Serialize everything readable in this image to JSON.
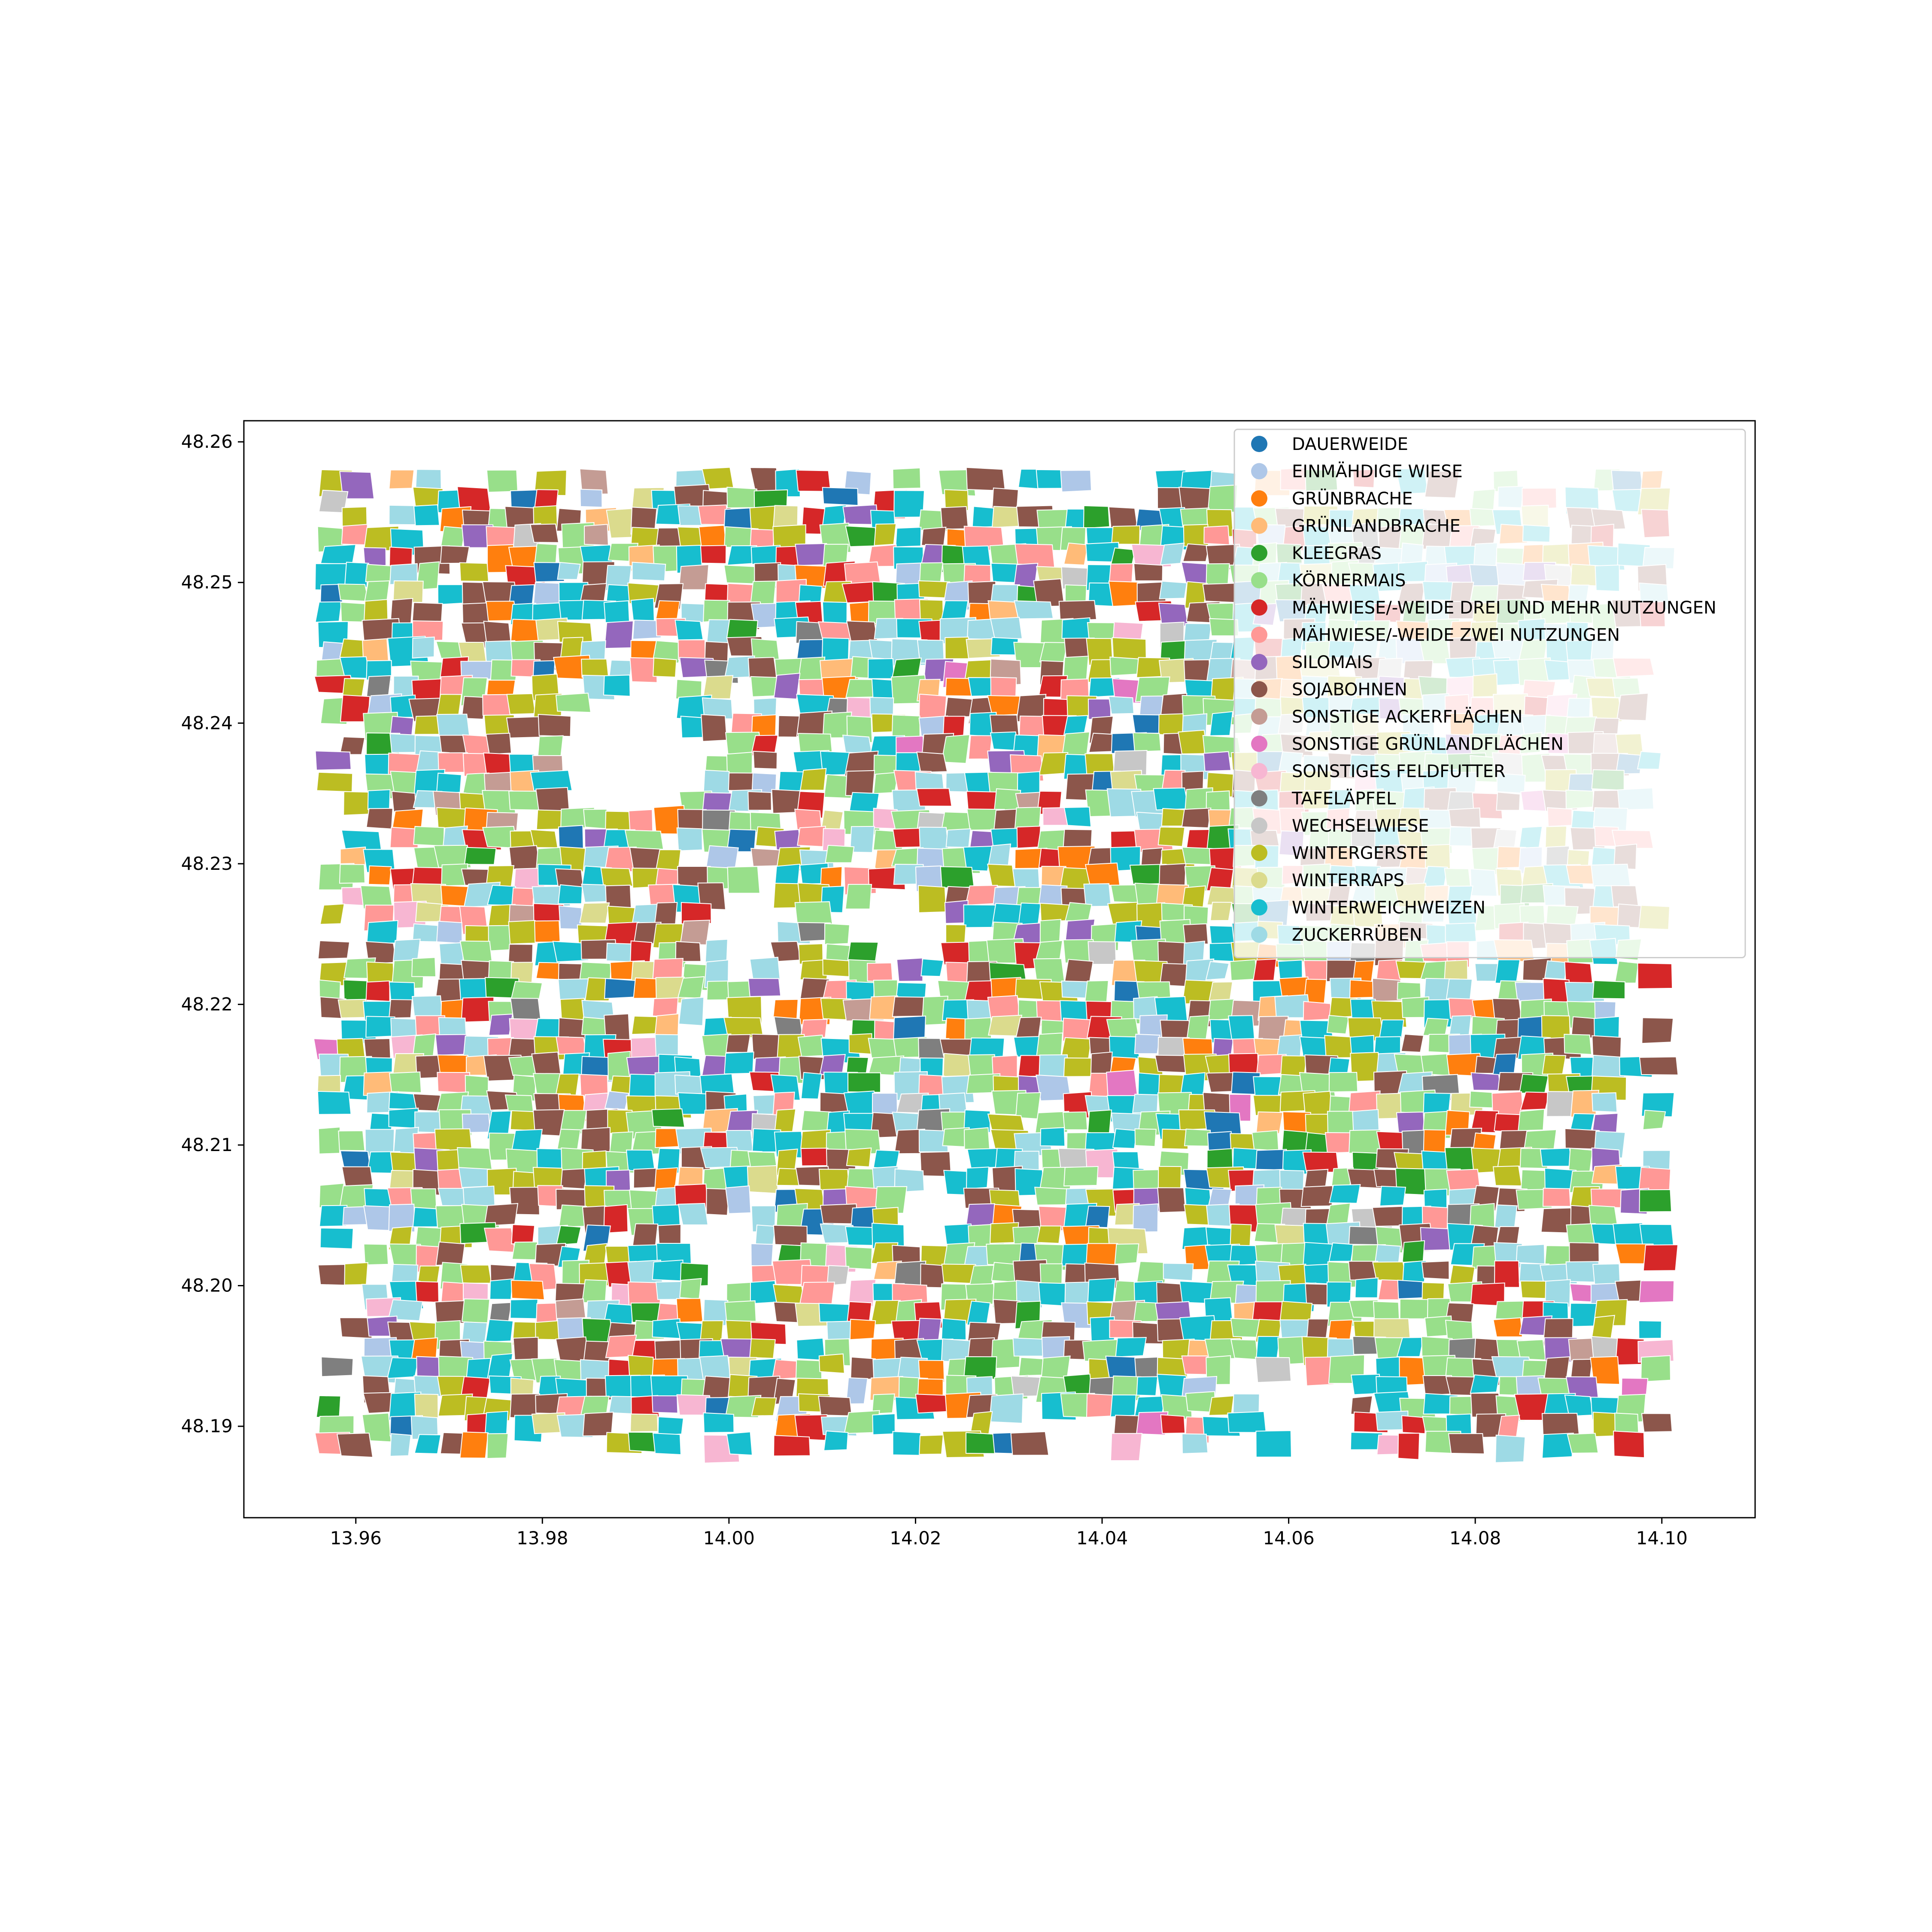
{
  "chart_data": {
    "type": "map",
    "title": "",
    "xlabel": "",
    "ylabel": "",
    "xlim": [
      13.948,
      14.11
    ],
    "ylim": [
      48.1835,
      48.2615
    ],
    "x_ticks": [
      "13.96",
      "13.98",
      "14.00",
      "14.02",
      "14.04",
      "14.06",
      "14.08",
      "14.10"
    ],
    "y_ticks": [
      "48.19",
      "48.20",
      "48.21",
      "48.22",
      "48.23",
      "48.24",
      "48.25",
      "48.26"
    ],
    "data_extent": {
      "lon": [
        13.956,
        14.102
      ],
      "lat": [
        48.187,
        48.258
      ]
    },
    "legend_position": "upper-right",
    "categories": [
      {
        "name": "DAUERWEIDE",
        "color": "#1f77b4"
      },
      {
        "name": "EINMÄHDIGE WIESE",
        "color": "#aec7e8"
      },
      {
        "name": "GRÜNBRACHE",
        "color": "#ff7f0e"
      },
      {
        "name": "GRÜNLANDBRACHE",
        "color": "#ffbb78"
      },
      {
        "name": "KLEEGRAS",
        "color": "#2ca02c"
      },
      {
        "name": "KÖRNERMAIS",
        "color": "#98df8a"
      },
      {
        "name": "MÄHWIESE/-WEIDE DREI UND MEHR NUTZUNGEN",
        "color": "#d62728"
      },
      {
        "name": "MÄHWIESE/-WEIDE ZWEI NUTZUNGEN",
        "color": "#ff9896"
      },
      {
        "name": "SILOMAIS",
        "color": "#9467bd"
      },
      {
        "name": "SOJABOHNEN",
        "color": "#8c564b"
      },
      {
        "name": "SONSTIGE ACKERFLÄCHEN",
        "color": "#c49c94"
      },
      {
        "name": "SONSTIGE GRÜNLANDFLÄCHEN",
        "color": "#e377c2"
      },
      {
        "name": "SONSTIGES FELDFUTTER",
        "color": "#f7b6d2"
      },
      {
        "name": "TAFELÄPFEL",
        "color": "#7f7f7f"
      },
      {
        "name": "WECHSELWIESE",
        "color": "#c7c7c7"
      },
      {
        "name": "WINTERGERSTE",
        "color": "#bcbd22"
      },
      {
        "name": "WINTERRAPS",
        "color": "#dbdb8d"
      },
      {
        "name": "WINTERWEICHWEIZEN",
        "color": "#17becf"
      },
      {
        "name": "ZUCKERRÜBEN",
        "color": "#9edae5"
      }
    ]
  }
}
